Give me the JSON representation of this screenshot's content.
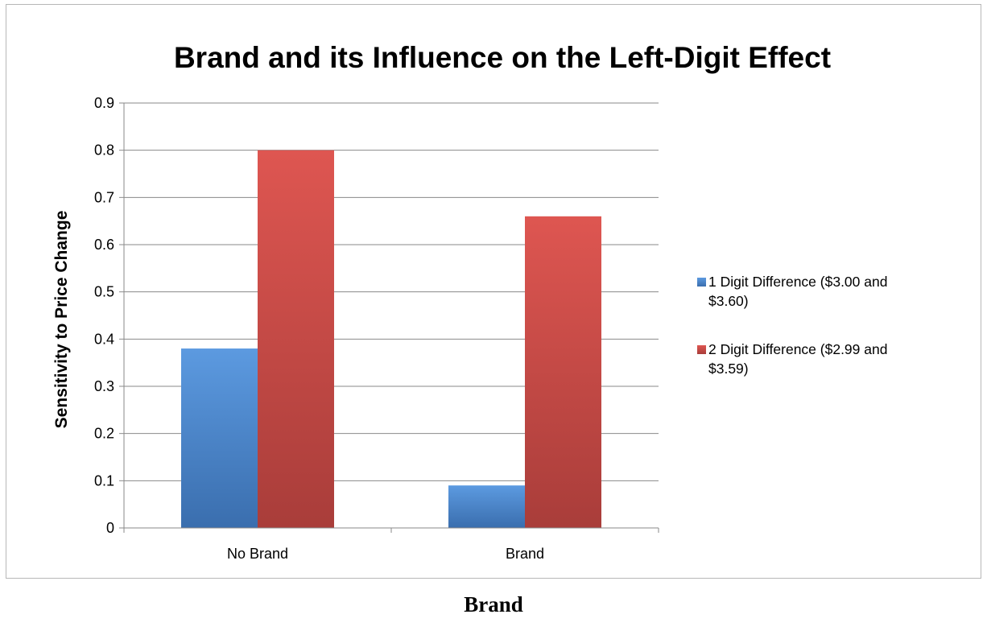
{
  "chart_data": {
    "type": "bar",
    "title": "Brand and its Influence on the Left-Digit Effect",
    "ylabel": "Sensitivity to Price Change",
    "xlabel": "",
    "categories": [
      "No Brand",
      "Brand"
    ],
    "series": [
      {
        "name": "1 Digit Difference ($3.00 and $3.60)",
        "legend_lines": [
          "1 Digit Difference ($3.00 and",
          "$3.60)"
        ],
        "color": "#4a7ebb",
        "values": [
          0.38,
          0.09
        ]
      },
      {
        "name": "2 Digit Difference ($2.99 and $3.59)",
        "legend_lines": [
          "2 Digit Difference ($2.99 and",
          "$3.59)"
        ],
        "color": "#be4b48",
        "values": [
          0.8,
          0.66
        ]
      }
    ],
    "ylim": [
      0,
      0.9
    ],
    "yticks": [
      "0",
      "0.1",
      "0.2",
      "0.3",
      "0.4",
      "0.5",
      "0.6",
      "0.7",
      "0.8",
      "0.9"
    ],
    "grid": true,
    "legend_position": "right"
  },
  "caption": "Brand"
}
